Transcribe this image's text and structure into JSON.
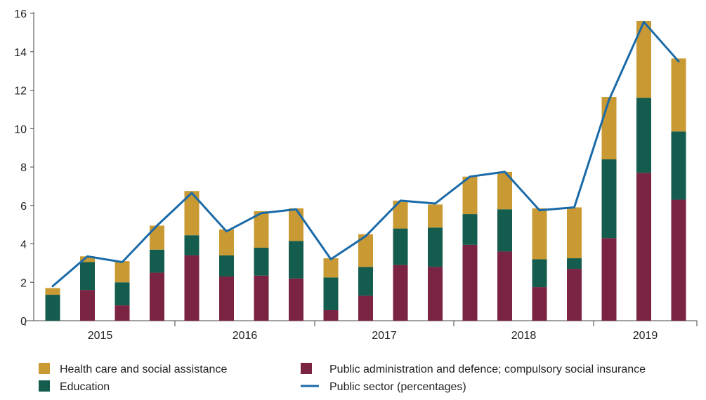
{
  "chart_data": {
    "type": "bar",
    "stacked": true,
    "title": "",
    "xlabel": "",
    "ylabel": "",
    "ylim": [
      0,
      16
    ],
    "yticks": [
      0,
      2,
      4,
      6,
      8,
      10,
      12,
      14,
      16
    ],
    "year_labels": [
      "2015",
      "2016",
      "2017",
      "2018",
      "2019"
    ],
    "grid": false,
    "legend_position": "bottom",
    "series": [
      {
        "name": "Public administration and defence; compulsory social insurance",
        "color": "#7b2342",
        "values": [
          0,
          1.6,
          0.8,
          2.5,
          3.4,
          2.3,
          2.35,
          2.2,
          0.55,
          1.3,
          2.9,
          2.8,
          3.95,
          3.6,
          1.75,
          2.7,
          4.3,
          7.7,
          6.3
        ]
      },
      {
        "name": "Education",
        "color": "#145c4e",
        "values": [
          1.35,
          1.45,
          1.2,
          1.2,
          1.05,
          1.1,
          1.45,
          1.95,
          1.7,
          1.5,
          1.9,
          2.05,
          1.6,
          2.2,
          1.45,
          0.55,
          4.1,
          3.9,
          3.55
        ]
      },
      {
        "name": "Health care and social assistance",
        "color": "#c99a33",
        "values": [
          0.35,
          0.3,
          1.1,
          1.25,
          2.3,
          1.35,
          1.9,
          1.7,
          1.0,
          1.7,
          1.45,
          1.2,
          1.95,
          1.95,
          2.65,
          2.65,
          3.25,
          4.0,
          3.8
        ]
      }
    ],
    "line": {
      "name": "Public sector (percentages)",
      "color": "#1a6aa8",
      "values": [
        1.8,
        3.35,
        3.05,
        4.95,
        6.65,
        4.65,
        5.6,
        5.8,
        3.2,
        4.4,
        6.25,
        6.1,
        7.5,
        7.75,
        5.75,
        5.9,
        11.5,
        15.55,
        13.5
      ]
    }
  }
}
